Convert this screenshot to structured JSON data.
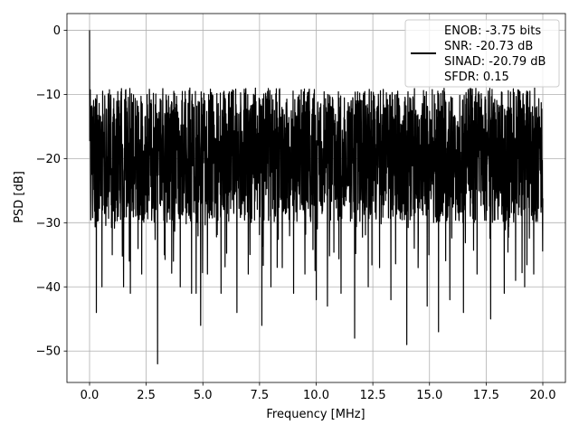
{
  "chart_data": {
    "type": "line",
    "title": "",
    "xlabel": "Frequency [MHz]",
    "ylabel": "PSD [dB]",
    "xlim": [
      -0.998,
      20.998
    ],
    "ylim": [
      -54.9,
      2.6
    ],
    "xticks": [
      0.0,
      2.5,
      5.0,
      7.5,
      10.0,
      12.5,
      15.0,
      17.5,
      20.0
    ],
    "xtick_labels": [
      "0.0",
      "2.5",
      "5.0",
      "7.5",
      "10.0",
      "12.5",
      "15.0",
      "17.5",
      "20.0"
    ],
    "yticks": [
      0,
      -10,
      -20,
      -30,
      -40,
      -50
    ],
    "ytick_labels": [
      "0",
      "−10",
      "−20",
      "−30",
      "−40",
      "−50"
    ],
    "grid": true,
    "legend_position": "upper right",
    "legend_lines": [
      "ENOB: -3.75 bits",
      "SNR: -20.73 dB",
      "SINAD: -20.79 dB",
      "SFDR: 0.15"
    ],
    "series": [
      {
        "color": "#000000",
        "noise_floor_typical": [
          -30,
          -9
        ],
        "peak": {
          "x": 0.0,
          "y": 0.0
        },
        "dips": [
          {
            "x": 0.3,
            "y": -44
          },
          {
            "x": 0.55,
            "y": -40
          },
          {
            "x": 1.0,
            "y": -35
          },
          {
            "x": 1.5,
            "y": -40
          },
          {
            "x": 1.8,
            "y": -41
          },
          {
            "x": 2.3,
            "y": -38
          },
          {
            "x": 3.0,
            "y": -52
          },
          {
            "x": 3.3,
            "y": -35
          },
          {
            "x": 3.7,
            "y": -36
          },
          {
            "x": 4.0,
            "y": -40
          },
          {
            "x": 4.5,
            "y": -41
          },
          {
            "x": 4.7,
            "y": -41
          },
          {
            "x": 4.9,
            "y": -46
          },
          {
            "x": 5.2,
            "y": -38
          },
          {
            "x": 5.8,
            "y": -41
          },
          {
            "x": 6.5,
            "y": -44
          },
          {
            "x": 7.0,
            "y": -38
          },
          {
            "x": 7.6,
            "y": -46
          },
          {
            "x": 8.0,
            "y": -40
          },
          {
            "x": 8.5,
            "y": -37
          },
          {
            "x": 9.0,
            "y": -41
          },
          {
            "x": 9.5,
            "y": -38
          },
          {
            "x": 10.0,
            "y": -42
          },
          {
            "x": 10.5,
            "y": -43
          },
          {
            "x": 11.1,
            "y": -41
          },
          {
            "x": 11.7,
            "y": -48
          },
          {
            "x": 12.3,
            "y": -40
          },
          {
            "x": 12.8,
            "y": -37
          },
          {
            "x": 13.3,
            "y": -42
          },
          {
            "x": 14.0,
            "y": -49
          },
          {
            "x": 14.5,
            "y": -37
          },
          {
            "x": 14.9,
            "y": -43
          },
          {
            "x": 15.4,
            "y": -47
          },
          {
            "x": 15.9,
            "y": -42
          },
          {
            "x": 16.5,
            "y": -44
          },
          {
            "x": 17.1,
            "y": -38
          },
          {
            "x": 17.7,
            "y": -45
          },
          {
            "x": 18.3,
            "y": -41
          },
          {
            "x": 18.8,
            "y": -39
          },
          {
            "x": 19.2,
            "y": -40
          },
          {
            "x": 19.6,
            "y": -38
          }
        ]
      }
    ]
  }
}
